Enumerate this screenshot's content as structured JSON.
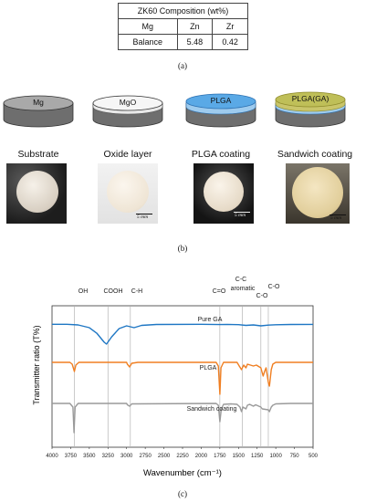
{
  "panel_a": {
    "title": "ZK60 Composition (wt%)",
    "headers": [
      "Mg",
      "Zn",
      "Zr"
    ],
    "values": [
      "Balance",
      "5.48",
      "0.42"
    ],
    "label": "(a)"
  },
  "panel_b": {
    "disks": [
      {
        "label": "Mg",
        "title": "Substrate",
        "scale": ""
      },
      {
        "label": "MgO",
        "title": "Oxide layer",
        "scale": "5 mm"
      },
      {
        "label": "PLGA",
        "title": "PLGA coating",
        "scale": "5 mm"
      },
      {
        "label": "PLGA(GA)",
        "title": "Sandwich coating",
        "scale": "5 mm"
      }
    ],
    "label": "(b)"
  },
  "panel_c": {
    "label": "(c)",
    "peak_labels": [
      "OH",
      "COOH",
      "C-H",
      "C=O",
      "C-C",
      "aromatic",
      "C-O",
      "C-O"
    ],
    "series_labels": [
      "Pure GA",
      "PLGA",
      "Sandwich coating"
    ],
    "colors": {
      "ga": "#1f77c4",
      "plga": "#f07f22",
      "sandwich": "#9a9a9a"
    }
  },
  "chart_data": {
    "type": "line",
    "xlabel": "Wavenumber (cm⁻¹)",
    "ylabel": "Transmitter ratio (T%)",
    "x_ticks": [
      "4000",
      "3750",
      "3500",
      "3250",
      "3000",
      "2750",
      "2500",
      "2250",
      "2000",
      "1750",
      "1500",
      "1250",
      "1000",
      "750",
      "500"
    ],
    "xlim": [
      4000,
      500
    ],
    "reference_lines": [
      3700,
      3250,
      2950,
      1750,
      1450,
      1200,
      1100
    ],
    "series": [
      {
        "name": "Pure GA",
        "points": [
          [
            4000,
            0.3
          ],
          [
            3800,
            0.3
          ],
          [
            3650,
            1
          ],
          [
            3500,
            4
          ],
          [
            3400,
            10
          ],
          [
            3300,
            20
          ],
          [
            3270,
            22
          ],
          [
            3200,
            14
          ],
          [
            3100,
            5
          ],
          [
            3000,
            2
          ],
          [
            2900,
            4
          ],
          [
            2800,
            1.5
          ],
          [
            2600,
            0.5
          ],
          [
            2000,
            0.3
          ],
          [
            1750,
            0.6
          ],
          [
            1650,
            0.5
          ],
          [
            1500,
            0.7
          ],
          [
            1400,
            1.5
          ],
          [
            1300,
            1
          ],
          [
            1200,
            2
          ],
          [
            1100,
            1.2
          ],
          [
            1000,
            0.8
          ],
          [
            800,
            0.5
          ],
          [
            500,
            0.4
          ]
        ]
      },
      {
        "name": "PLGA",
        "points": [
          [
            4000,
            0
          ],
          [
            3760,
            0
          ],
          [
            3730,
            2
          ],
          [
            3700,
            10
          ],
          [
            3680,
            3
          ],
          [
            3640,
            0
          ],
          [
            3000,
            0
          ],
          [
            2990,
            2
          ],
          [
            2960,
            5
          ],
          [
            2930,
            1
          ],
          [
            2850,
            0
          ],
          [
            1800,
            0
          ],
          [
            1770,
            4
          ],
          [
            1750,
            35
          ],
          [
            1735,
            6
          ],
          [
            1700,
            0
          ],
          [
            1520,
            0
          ],
          [
            1490,
            4
          ],
          [
            1460,
            8
          ],
          [
            1430,
            3
          ],
          [
            1400,
            6
          ],
          [
            1380,
            2
          ],
          [
            1300,
            4
          ],
          [
            1260,
            3
          ],
          [
            1200,
            6
          ],
          [
            1170,
            15
          ],
          [
            1150,
            10
          ],
          [
            1130,
            6
          ],
          [
            1100,
            22
          ],
          [
            1085,
            26
          ],
          [
            1060,
            8
          ],
          [
            1040,
            2
          ],
          [
            1000,
            0
          ],
          [
            700,
            0
          ],
          [
            500,
            0
          ]
        ]
      },
      {
        "name": "Sandwich coating",
        "points": [
          [
            4000,
            0
          ],
          [
            3760,
            0
          ],
          [
            3720,
            4
          ],
          [
            3705,
            32
          ],
          [
            3690,
            4
          ],
          [
            3650,
            0
          ],
          [
            3000,
            0
          ],
          [
            2990,
            1.5
          ],
          [
            2960,
            3
          ],
          [
            2930,
            0.5
          ],
          [
            1800,
            0
          ],
          [
            1770,
            2
          ],
          [
            1750,
            20
          ],
          [
            1730,
            6
          ],
          [
            1700,
            1
          ],
          [
            1600,
            0.5
          ],
          [
            1520,
            1
          ],
          [
            1480,
            4
          ],
          [
            1460,
            9
          ],
          [
            1440,
            4
          ],
          [
            1400,
            6
          ],
          [
            1380,
            2
          ],
          [
            1350,
            1
          ],
          [
            1300,
            3
          ],
          [
            1270,
            1.5
          ],
          [
            1200,
            4
          ],
          [
            1180,
            6
          ],
          [
            1100,
            7
          ],
          [
            1085,
            9
          ],
          [
            1060,
            4
          ],
          [
            1040,
            2
          ],
          [
            1000,
            0.5
          ],
          [
            800,
            0
          ],
          [
            500,
            0
          ]
        ]
      }
    ]
  }
}
